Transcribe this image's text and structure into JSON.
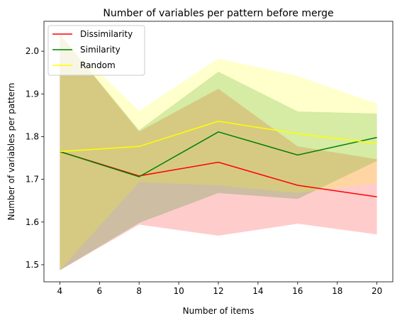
{
  "chart_data": {
    "type": "line",
    "title": "Number of variables per pattern before merge",
    "xlabel": "Number of items",
    "ylabel": "Number of variables per pattern",
    "x": [
      4,
      8,
      12,
      16,
      20
    ],
    "xlim": [
      3.2,
      20.8
    ],
    "ylim": [
      1.46,
      2.07
    ],
    "xticks": [
      4,
      6,
      8,
      10,
      12,
      14,
      16,
      18,
      20
    ],
    "yticks": [
      1.5,
      1.6,
      1.7,
      1.8,
      1.9,
      2.0
    ],
    "grid": false,
    "legend": "top-left",
    "series": [
      {
        "name": "Dissimilarity",
        "color": "#ff0000",
        "values": [
          1.765,
          1.708,
          1.74,
          1.686,
          1.659
        ],
        "lower": [
          1.487,
          1.594,
          1.568,
          1.596,
          1.571
        ],
        "upper": [
          2.04,
          1.812,
          1.912,
          1.777,
          1.747
        ]
      },
      {
        "name": "Similarity",
        "color": "#008000",
        "values": [
          1.765,
          1.706,
          1.811,
          1.757,
          1.798
        ],
        "lower": [
          1.487,
          1.598,
          1.668,
          1.654,
          1.743
        ],
        "upper": [
          2.04,
          1.815,
          1.952,
          1.859,
          1.854
        ]
      },
      {
        "name": "Random",
        "color": "#ffff00",
        "values": [
          1.765,
          1.777,
          1.836,
          1.807,
          1.784
        ],
        "lower": [
          1.487,
          1.693,
          1.686,
          1.668,
          1.691
        ],
        "upper": [
          2.04,
          1.86,
          1.983,
          1.942,
          1.877
        ]
      }
    ]
  }
}
